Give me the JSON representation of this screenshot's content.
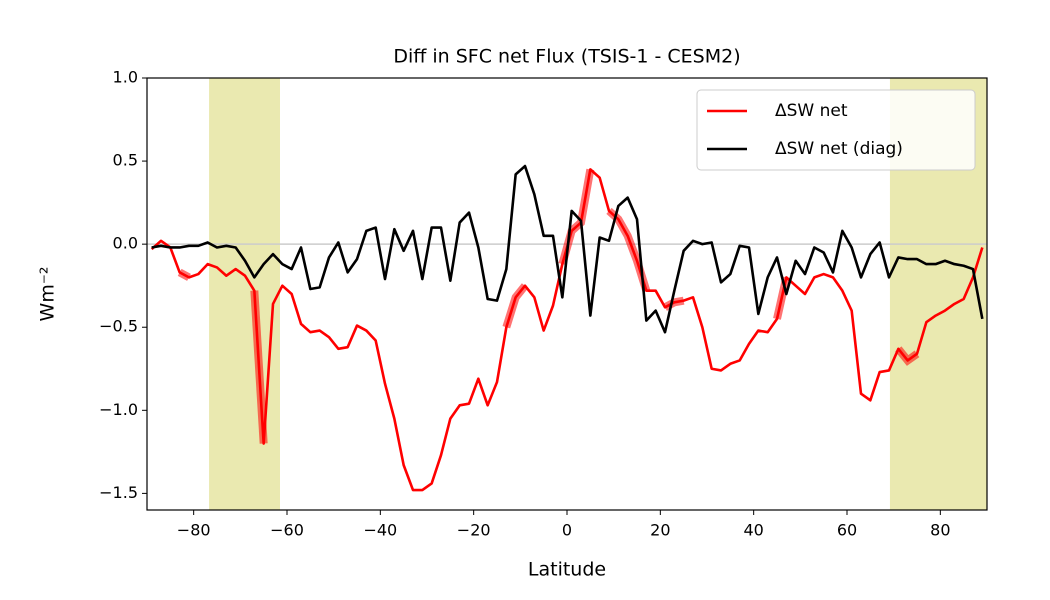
{
  "chart_data": {
    "type": "line",
    "title": "Diff in SFC net Flux (TSIS-1 - CESM2)",
    "xlabel": "Latitude",
    "ylabel": "Wm⁻²",
    "x": [
      -89,
      -87,
      -85,
      -83,
      -81,
      -79,
      -77,
      -75,
      -73,
      -71,
      -69,
      -67,
      -65,
      -63,
      -61,
      -59,
      -57,
      -55,
      -53,
      -51,
      -49,
      -47,
      -45,
      -43,
      -41,
      -39,
      -37,
      -35,
      -33,
      -31,
      -29,
      -27,
      -25,
      -23,
      -21,
      -19,
      -17,
      -15,
      -13,
      -11,
      -9,
      -7,
      -5,
      -3,
      -1,
      1,
      3,
      5,
      7,
      9,
      11,
      13,
      15,
      17,
      19,
      21,
      23,
      25,
      27,
      29,
      31,
      33,
      35,
      37,
      39,
      41,
      43,
      45,
      47,
      49,
      51,
      53,
      55,
      57,
      59,
      61,
      63,
      65,
      67,
      69,
      71,
      73,
      75,
      77,
      79,
      81,
      83,
      85,
      87,
      89
    ],
    "series": [
      {
        "name": "ΔSW net",
        "color": "#ff0000",
        "values": [
          -0.03,
          0.02,
          -0.02,
          -0.17,
          -0.2,
          -0.18,
          -0.12,
          -0.14,
          -0.19,
          -0.15,
          -0.19,
          -0.28,
          -1.2,
          -0.36,
          -0.25,
          -0.3,
          -0.48,
          -0.53,
          -0.52,
          -0.56,
          -0.63,
          -0.62,
          -0.49,
          -0.52,
          -0.58,
          -0.84,
          -1.05,
          -1.33,
          -1.48,
          -1.48,
          -1.44,
          -1.27,
          -1.05,
          -0.97,
          -0.96,
          -0.81,
          -0.97,
          -0.83,
          -0.5,
          -0.32,
          -0.25,
          -0.32,
          -0.52,
          -0.37,
          -0.12,
          0.08,
          0.13,
          0.45,
          0.4,
          0.2,
          0.15,
          0.05,
          -0.1,
          -0.28,
          -0.28,
          -0.38,
          -0.35,
          -0.34,
          -0.32,
          -0.5,
          -0.75,
          -0.76,
          -0.72,
          -0.7,
          -0.6,
          -0.52,
          -0.53,
          -0.45,
          -0.2,
          -0.25,
          -0.3,
          -0.2,
          -0.18,
          -0.2,
          -0.28,
          -0.4,
          -0.9,
          -0.94,
          -0.77,
          -0.76,
          -0.63,
          -0.7,
          -0.66,
          -0.47,
          -0.43,
          -0.4,
          -0.36,
          -0.33,
          -0.2,
          -0.02
        ]
      },
      {
        "name": "ΔSW net (diag)",
        "color": "#000000",
        "values": [
          -0.02,
          -0.01,
          -0.02,
          -0.02,
          -0.01,
          -0.01,
          0.01,
          -0.02,
          -0.01,
          -0.02,
          -0.1,
          -0.2,
          -0.12,
          -0.06,
          -0.12,
          -0.15,
          -0.02,
          -0.27,
          -0.26,
          -0.08,
          0.01,
          -0.17,
          -0.09,
          0.08,
          0.1,
          -0.21,
          0.09,
          -0.04,
          0.08,
          -0.21,
          0.1,
          0.1,
          -0.22,
          0.13,
          0.19,
          -0.02,
          -0.33,
          -0.34,
          -0.15,
          0.42,
          0.47,
          0.3,
          0.05,
          0.05,
          -0.32,
          0.2,
          0.14,
          -0.43,
          0.04,
          0.02,
          0.23,
          0.28,
          0.15,
          -0.46,
          -0.4,
          -0.53,
          -0.28,
          -0.04,
          0.02,
          0.0,
          0.01,
          -0.23,
          -0.18,
          -0.01,
          -0.02,
          -0.42,
          -0.2,
          -0.08,
          -0.3,
          -0.1,
          -0.18,
          -0.02,
          -0.05,
          -0.17,
          0.08,
          -0.02,
          -0.2,
          -0.06,
          0.01,
          -0.2,
          -0.08,
          -0.09,
          -0.09,
          -0.12,
          -0.12,
          -0.1,
          -0.12,
          -0.13,
          -0.15,
          -0.45
        ]
      }
    ],
    "highlight_ranges": [
      [
        -83,
        -81
      ],
      [
        -67,
        -65
      ],
      [
        -13,
        -9
      ],
      [
        -1,
        5
      ],
      [
        9,
        17
      ],
      [
        21,
        25
      ],
      [
        45,
        47
      ],
      [
        71,
        75
      ]
    ],
    "highlight_color": "#ff0000",
    "shaded_spans": [
      [
        -76.7,
        -61.5
      ],
      [
        69.2,
        90
      ]
    ],
    "shade_color": "#eae9b0",
    "hline": 0,
    "hline_color": "#cccccc",
    "legend": "upper right",
    "xlim": [
      -90,
      90
    ],
    "ylim": [
      -1.6,
      1.0
    ],
    "xticks": [
      {
        "value": -80,
        "label": "−80"
      },
      {
        "value": -60,
        "label": "−60"
      },
      {
        "value": -40,
        "label": "−40"
      },
      {
        "value": -20,
        "label": "−20"
      },
      0,
      20,
      40,
      60,
      80
    ],
    "yticks": [
      {
        "value": -1.5,
        "label": "−1.5"
      },
      {
        "value": -1.0,
        "label": "−1.0"
      },
      {
        "value": -0.5,
        "label": "−0.5"
      },
      {
        "value": 0.0,
        "label": "0.0"
      },
      0.5,
      {
        "value": 1.0,
        "label": "1.0"
      }
    ]
  }
}
